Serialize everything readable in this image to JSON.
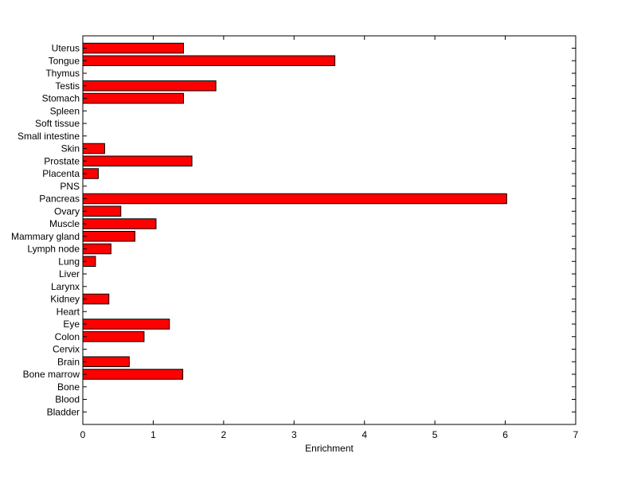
{
  "chart_data": {
    "type": "bar",
    "orientation": "horizontal",
    "title": "",
    "xlabel": "Enrichment",
    "ylabel": "",
    "xlim": [
      0,
      7
    ],
    "x_ticks": [
      0,
      1,
      2,
      3,
      4,
      5,
      6,
      7
    ],
    "bar_color": "#ff0000",
    "grid": false,
    "categories": [
      "Uterus",
      "Tongue",
      "Thymus",
      "Testis",
      "Stomach",
      "Spleen",
      "Soft tissue",
      "Small intestine",
      "Skin",
      "Prostate",
      "Placenta",
      "PNS",
      "Pancreas",
      "Ovary",
      "Muscle",
      "Mammary gland",
      "Lymph node",
      "Lung",
      "Liver",
      "Larynx",
      "Kidney",
      "Heart",
      "Eye",
      "Colon",
      "Cervix",
      "Brain",
      "Bone marrow",
      "Bone",
      "Blood",
      "Bladder"
    ],
    "values": [
      1.43,
      3.58,
      0,
      1.89,
      1.43,
      0,
      0,
      0,
      0.31,
      1.55,
      0.22,
      0,
      6.02,
      0.54,
      1.04,
      0.74,
      0.4,
      0.18,
      0,
      0,
      0.37,
      0,
      1.23,
      0.87,
      0,
      0.66,
      1.42,
      0,
      0,
      0
    ]
  }
}
